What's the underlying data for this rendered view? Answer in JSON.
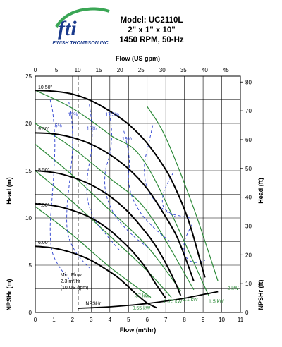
{
  "header": {
    "logo_text": "fti",
    "company": "FINISH THOMPSON INC.",
    "model": "Model: UC2110L",
    "size": "2\" x 1\" x 10\"",
    "speed": "1450 RPM, 50-Hz"
  },
  "colors": {
    "head_curve": "#000000",
    "efficiency": "#2a3fcf",
    "power": "#2e8b3a",
    "grid": "#000000",
    "logo_blue": "#1a3a8c",
    "logo_green": "#3aa655"
  },
  "chart_data": {
    "type": "line",
    "top_axis_label": "Flow (US gpm)",
    "top_ticks": [
      "0",
      "5",
      "10",
      "15",
      "20",
      "25",
      "30",
      "35",
      "40",
      "45"
    ],
    "xlabel": "Flow (m³/hr)",
    "xlim": [
      0,
      11
    ],
    "x_ticks": [
      "0",
      "1",
      "2",
      "3",
      "4",
      "5",
      "6",
      "7",
      "8",
      "9",
      "10",
      "11"
    ],
    "ylabel": "Head (m)",
    "ylim": [
      0,
      25
    ],
    "y_ticks": [
      "0",
      "5",
      "10",
      "15",
      "20",
      "25"
    ],
    "y2label": "Head (ft)",
    "y2_ticks": [
      "0",
      "10",
      "20",
      "30",
      "40",
      "50",
      "60",
      "70",
      "80"
    ],
    "left_npshr_label": "NPSHr (m)",
    "right_npshr_label": "NPSHr (ft)",
    "min_flow_vline": 2.3,
    "impeller_curves": [
      {
        "name": "10.50\"",
        "x": [
          0,
          1,
          2,
          3,
          4,
          5,
          6,
          7,
          7.5,
          8,
          8.4,
          8.8,
          9.1
        ],
        "y": [
          23.5,
          23.4,
          23.1,
          22.4,
          21.3,
          19.9,
          17.9,
          15.1,
          13.2,
          10.9,
          8.6,
          5.8,
          3.7
        ]
      },
      {
        "name": "9.50\"",
        "x": [
          0,
          1,
          2,
          3,
          4,
          5,
          6,
          7,
          7.6,
          8.1,
          8.5
        ],
        "y": [
          19,
          18.9,
          18.5,
          17.8,
          16.7,
          15.2,
          13.1,
          10.1,
          8,
          5.5,
          3.3
        ]
      },
      {
        "name": "8.50\"",
        "x": [
          0,
          1,
          2,
          3,
          4,
          5,
          6,
          6.5,
          7,
          7.5,
          7.8
        ],
        "y": [
          15,
          14.8,
          14.3,
          13.5,
          12.3,
          10.6,
          8.3,
          6.9,
          5.2,
          3.2,
          1.8
        ]
      },
      {
        "name": "7.50\"",
        "x": [
          0,
          1,
          2,
          3,
          4,
          5,
          5.5,
          6,
          6.5,
          7
        ],
        "y": [
          11.5,
          11.3,
          10.8,
          10,
          8.7,
          6.9,
          5.8,
          4.5,
          2.9,
          1.5
        ]
      },
      {
        "name": "6.00\"",
        "x": [
          0,
          1,
          2,
          3,
          4,
          4.5,
          5,
          5.5,
          6,
          6.5
        ],
        "y": [
          7,
          6.8,
          6.3,
          5.5,
          4.3,
          3.6,
          2.7,
          1.8,
          1,
          0.5
        ]
      }
    ],
    "efficiency_labels": [
      "5%",
      "10%",
      "15%",
      "17.5%",
      "19%"
    ],
    "efficiency_curves": [
      {
        "name": "5%",
        "x": [
          0.8,
          0.95,
          1.05,
          1.0,
          0.9,
          0.8,
          0.9,
          1.3,
          1.8
        ],
        "y": [
          22.5,
          21,
          18,
          15,
          12,
          9,
          6.5,
          4.8,
          3.6
        ]
      },
      {
        "name": "10%",
        "x": [
          1.8,
          1.95,
          2.0,
          1.85,
          1.7,
          1.75,
          2.2,
          2.9
        ],
        "y": [
          22.3,
          20.5,
          17.5,
          14,
          11,
          8.3,
          6.3,
          4.7
        ]
      },
      {
        "name": "15%",
        "x": [
          2.9,
          3.05,
          3.0,
          2.8,
          2.8,
          3.2,
          3.9,
          4.6
        ],
        "y": [
          22,
          19.5,
          17,
          14.5,
          12,
          9.8,
          8,
          6.4
        ]
      },
      {
        "name": "17.5%",
        "x": [
          3.95,
          4.1,
          4.0,
          3.75,
          3.8,
          4.3,
          5.2,
          6.1
        ],
        "y": [
          21.6,
          19,
          16.8,
          14.8,
          12.5,
          10.2,
          8.2,
          6.8
        ]
      },
      {
        "name": "19%",
        "x": [
          4.75,
          4.95,
          5.05,
          5.0,
          5.2,
          5.7,
          6.5,
          7.3
        ],
        "y": [
          19.2,
          17.5,
          15.8,
          14,
          12.2,
          10.4,
          8.7,
          7.4
        ]
      },
      {
        "name": "17.5% right",
        "x": [
          6.3,
          6.1,
          5.85,
          6.0,
          6.55,
          7.1,
          7.55
        ],
        "y": [
          19.8,
          18,
          15.5,
          13.2,
          11.5,
          10.6,
          10.1
        ]
      },
      {
        "name": "15% right",
        "x": [
          7.4,
          6.9,
          6.85,
          7.25,
          7.8,
          8.3
        ],
        "y": [
          14.8,
          12.8,
          11.3,
          10.5,
          10.2,
          10
        ]
      },
      {
        "name": "10% right",
        "x": [
          8.4,
          8.0,
          8.05,
          8.5,
          9.1
        ],
        "y": [
          9.3,
          7.5,
          6,
          5.3,
          5.5
        ]
      }
    ],
    "power_labels": [
      ".37 kW",
      "0.55 kW",
      "0.75 kW",
      "1.1 kW",
      "1.5 kW",
      "2 kW"
    ],
    "power_curves": [
      {
        "name": ".37 kW",
        "x": [
          0,
          2,
          4,
          6.2
        ],
        "y": [
          11.2,
          8.2,
          4.8,
          1.6
        ]
      },
      {
        "name": "0.55 kW",
        "x": [
          0,
          2,
          4,
          6,
          7.3
        ],
        "y": [
          15,
          11.7,
          8.1,
          4.4,
          1.6
        ]
      },
      {
        "name": "0.75 kW",
        "x": [
          0,
          2,
          4,
          6,
          7.8
        ],
        "y": [
          17.8,
          14.5,
          10.8,
          7,
          2.3
        ]
      },
      {
        "name": "1.1 kW",
        "x": [
          0,
          2,
          4,
          6,
          8.5
        ],
        "y": [
          20,
          17.4,
          14.2,
          10.7,
          2.4
        ]
      },
      {
        "name": "1.5 kW",
        "x": [
          0,
          2,
          4,
          6,
          9.3
        ],
        "y": [
          23.5,
          21.6,
          18.8,
          15.5,
          1.8
        ]
      },
      {
        "name": "2 kW",
        "x": [
          6,
          7,
          8.5,
          9.8
        ],
        "y": [
          21.8,
          18.5,
          11,
          3.3
        ]
      }
    ],
    "npshr_curve": {
      "label": "NPSHr",
      "x": [
        2.3,
        3,
        4,
        5,
        6,
        7,
        8,
        9,
        9.8
      ],
      "y": [
        0.45,
        0.5,
        0.6,
        0.75,
        0.95,
        1.2,
        1.5,
        1.9,
        2.2
      ]
    },
    "min_flow_note": [
      "Min. Flow",
      "2.3 m³/hr",
      "(10 US gpm)"
    ]
  }
}
